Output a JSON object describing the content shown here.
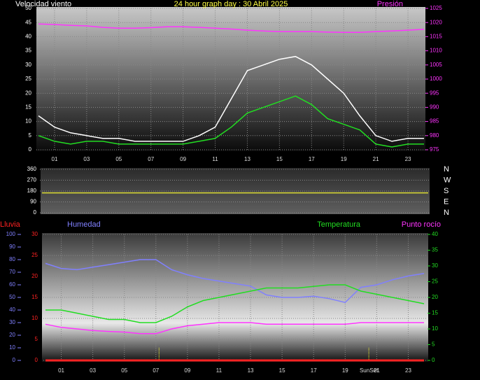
{
  "chart_data": [
    {
      "type": "line",
      "title": "24 hour graph day : 30 Abril 2025",
      "ylabel": "Velocidad viento",
      "y2label": "Presión",
      "x": [
        0,
        1,
        2,
        3,
        4,
        5,
        6,
        7,
        8,
        9,
        10,
        11,
        12,
        13,
        14,
        15,
        16,
        17,
        18,
        19,
        20,
        21,
        22,
        23,
        24
      ],
      "xlim": [
        0,
        24
      ],
      "xticks": [
        {
          "value": 1,
          "label": "01"
        },
        {
          "value": 3,
          "label": "03"
        },
        {
          "value": 5,
          "label": "05"
        },
        {
          "value": 7,
          "label": "07"
        },
        {
          "value": 9,
          "label": "09"
        },
        {
          "value": 11,
          "label": "11"
        },
        {
          "value": 13,
          "label": "13"
        },
        {
          "value": 15,
          "label": "15"
        },
        {
          "value": 17,
          "label": "17"
        },
        {
          "value": 19,
          "label": "19"
        },
        {
          "value": 21,
          "label": "21"
        },
        {
          "value": 23,
          "label": "23"
        }
      ],
      "ylim": [
        0,
        50
      ],
      "yticks": [
        0,
        5,
        10,
        15,
        20,
        25,
        30,
        35,
        40,
        45,
        50
      ],
      "y2lim": [
        975,
        1025
      ],
      "y2ticks": [
        975,
        980,
        985,
        990,
        995,
        1000,
        1005,
        1010,
        1015,
        1020,
        1025
      ],
      "series": [
        {
          "color": "#ffffff",
          "values": [
            12,
            8,
            6,
            5,
            4,
            4,
            3,
            3,
            3,
            3,
            5,
            8,
            18,
            28,
            30,
            32,
            33,
            30,
            25,
            20,
            12,
            5,
            3,
            4,
            4
          ]
        },
        {
          "color": "#22dd22",
          "values": [
            5,
            3,
            2,
            3,
            3,
            2,
            2,
            2,
            2,
            2,
            3,
            4,
            8,
            13,
            15,
            17,
            19,
            16,
            11,
            9,
            7,
            2,
            1,
            2,
            2
          ]
        },
        {
          "color": "#ff33ff",
          "axis": "y2",
          "values": [
            1019.5,
            1019.3,
            1019,
            1018.8,
            1018.3,
            1018,
            1018,
            1018.2,
            1018.5,
            1018.5,
            1018.3,
            1018,
            1017.7,
            1017.3,
            1017,
            1016.8,
            1016.8,
            1016.8,
            1016.6,
            1016.5,
            1016.5,
            1016.8,
            1017,
            1017.3,
            1017.6
          ]
        }
      ]
    },
    {
      "type": "line",
      "x": [
        0,
        24
      ],
      "xlim": [
        0,
        24
      ],
      "ylim": [
        0,
        360
      ],
      "yticks": [
        0,
        90,
        180,
        270,
        360
      ],
      "compass": [
        "N",
        "W",
        "S",
        "E",
        "N"
      ],
      "series": [
        {
          "color": "#dddd33",
          "values": [
            165,
            165
          ]
        }
      ]
    },
    {
      "type": "line",
      "x": [
        0,
        1,
        2,
        3,
        4,
        5,
        6,
        7,
        8,
        9,
        10,
        11,
        12,
        13,
        14,
        15,
        16,
        17,
        18,
        19,
        20,
        21,
        22,
        23,
        24
      ],
      "xlim": [
        0,
        24
      ],
      "xticks": [
        {
          "value": 1,
          "label": "01"
        },
        {
          "value": 3,
          "label": "03"
        },
        {
          "value": 5,
          "label": "05"
        },
        {
          "value": 7,
          "label": "07"
        },
        {
          "value": 9,
          "label": "09"
        },
        {
          "value": 11,
          "label": "11"
        },
        {
          "value": 13,
          "label": "13"
        },
        {
          "value": 15,
          "label": "15"
        },
        {
          "value": 17,
          "label": "17"
        },
        {
          "value": 19,
          "label": "19"
        },
        {
          "value": 21,
          "label": "21"
        },
        {
          "value": 23,
          "label": "23"
        }
      ],
      "ylim": [
        0,
        30
      ],
      "yticks": [
        0,
        5,
        10,
        15,
        20,
        25,
        30
      ],
      "y3lim": [
        0,
        100
      ],
      "y3ticks": [
        0,
        10,
        20,
        30,
        40,
        50,
        60,
        70,
        80,
        90,
        100
      ],
      "y2lim": [
        0,
        40
      ],
      "y2ticks": [
        0,
        5,
        10,
        15,
        20,
        25,
        30,
        35,
        40
      ],
      "annotations": [
        {
          "x": 7.2
        },
        {
          "x": 20.5,
          "label": "SunSet"
        }
      ],
      "series": [
        {
          "name": "Lluvia",
          "color": "#ff2222",
          "values": [
            0,
            0,
            0,
            0,
            0,
            0,
            0,
            0,
            0,
            0,
            0,
            0,
            0,
            0,
            0,
            0,
            0,
            0,
            0,
            0,
            0,
            0,
            0,
            0,
            0
          ]
        },
        {
          "name": "Humedad",
          "color": "#8080ff",
          "axis": "y3",
          "values": [
            77,
            73,
            72,
            74,
            76,
            78,
            80,
            80,
            72,
            68,
            65,
            63,
            61,
            59,
            52,
            50,
            50,
            51,
            49,
            46,
            58,
            60,
            64,
            67,
            69
          ]
        },
        {
          "name": "Temperatura",
          "color": "#22dd22",
          "axis": "y2",
          "values": [
            16,
            16,
            15,
            14,
            13,
            13,
            12,
            12,
            14,
            17,
            19,
            20,
            21,
            22,
            23,
            23,
            23,
            23.5,
            24,
            24,
            22,
            21,
            20,
            19,
            18
          ]
        },
        {
          "name": "Punto rocío",
          "color": "#ff33ff",
          "axis": "y2",
          "values": [
            11.5,
            10.5,
            10,
            9.5,
            9.2,
            9,
            8.5,
            8.5,
            10,
            11,
            11.5,
            12,
            12,
            12,
            11.5,
            11.5,
            11.5,
            11.5,
            11.5,
            11.5,
            12,
            12,
            12,
            12,
            12
          ]
        }
      ]
    }
  ]
}
